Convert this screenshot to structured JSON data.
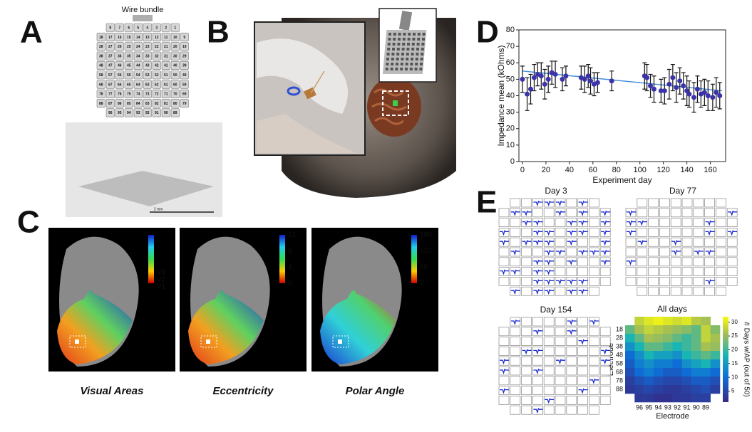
{
  "panel_labels": [
    "A",
    "B",
    "C",
    "D",
    "E"
  ],
  "array_map": {
    "title": "Wire bundle",
    "rows": [
      [
        8,
        7,
        6,
        5,
        4,
        3,
        2,
        1
      ],
      [
        18,
        17,
        16,
        15,
        14,
        13,
        12,
        11,
        10,
        9
      ],
      [
        28,
        27,
        26,
        25,
        24,
        23,
        22,
        21,
        20,
        19
      ],
      [
        38,
        37,
        36,
        35,
        34,
        33,
        32,
        31,
        30,
        29
      ],
      [
        48,
        47,
        46,
        45,
        44,
        43,
        42,
        41,
        40,
        39
      ],
      [
        58,
        57,
        56,
        55,
        54,
        53,
        52,
        51,
        50,
        49
      ],
      [
        68,
        67,
        66,
        65,
        64,
        63,
        62,
        61,
        60,
        59
      ],
      [
        78,
        77,
        76,
        75,
        74,
        73,
        72,
        71,
        70,
        69
      ],
      [
        88,
        87,
        86,
        85,
        84,
        83,
        82,
        81,
        80,
        79
      ],
      [
        96,
        95,
        94,
        93,
        92,
        91,
        90,
        89
      ]
    ]
  },
  "photo_scale": "2 mm",
  "brain_maps": [
    {
      "caption": "Visual Areas",
      "colorbar_labels": [
        "V3",
        "V2",
        "V1"
      ]
    },
    {
      "caption": "Eccentricity",
      "colorbar_ticks": [
        12,
        8,
        4,
        0
      ]
    },
    {
      "caption": "Polar Angle",
      "colorbar_ticks": [
        180,
        120,
        60,
        0
      ]
    }
  ],
  "waveform_panels": [
    {
      "title": "Day 3"
    },
    {
      "title": "Day 77"
    },
    {
      "title": "Day 154"
    }
  ],
  "chart_data": [
    {
      "type": "scatter",
      "xlabel": "Experiment day",
      "ylabel": "Impedance mean (kOhms)",
      "color": "#3b33a8",
      "error_color": "#111111",
      "x": [
        0,
        4,
        7,
        10,
        13,
        16,
        19,
        22,
        25,
        28,
        34,
        37,
        50,
        53,
        56,
        58,
        61,
        64,
        76,
        104,
        106,
        109,
        112,
        118,
        121,
        125,
        128,
        131,
        134,
        137,
        140,
        142,
        146,
        149,
        152,
        155,
        158,
        162,
        165,
        168
      ],
      "values": [
        50,
        41,
        44,
        51,
        53,
        52,
        47,
        50,
        54,
        53,
        50,
        52,
        51,
        50,
        52,
        49,
        47,
        48,
        49,
        52,
        51,
        46,
        44,
        43,
        43,
        47,
        51,
        45,
        49,
        46,
        43,
        41,
        39,
        44,
        41,
        42,
        40,
        39,
        42,
        40
      ],
      "errors": [
        8,
        10,
        9,
        8,
        7,
        8,
        9,
        8,
        7,
        8,
        7,
        6,
        7,
        8,
        7,
        8,
        7,
        6,
        6,
        8,
        8,
        7,
        8,
        7,
        8,
        9,
        8,
        9,
        8,
        8,
        9,
        8,
        9,
        8,
        8,
        8,
        9,
        8,
        9,
        8
      ],
      "trend_line": {
        "color": "#4a90d9",
        "x": [
          0,
          170
        ],
        "values": [
          55,
          43
        ]
      },
      "xlim": [
        -3,
        173
      ],
      "ylim": [
        0,
        80
      ],
      "xticks": [
        0,
        20,
        40,
        60,
        80,
        100,
        120,
        140,
        160
      ],
      "yticks": [
        0,
        10,
        20,
        30,
        40,
        50,
        60,
        70,
        80
      ]
    },
    {
      "type": "heatmap",
      "title": "All days",
      "xlabel": "Electrode",
      "ylabel": "Electrode",
      "colorbar_label": "# Days w/AP (out of 50)",
      "x_categories": [
        null,
        "96",
        "95",
        "94",
        "93",
        "92",
        "91",
        "90",
        "89",
        null
      ],
      "y_categories": [
        null,
        "18",
        "28",
        "38",
        "48",
        "58",
        "68",
        "78",
        "88",
        null
      ],
      "values": [
        [
          null,
          28,
          30,
          31,
          30,
          29,
          30,
          27,
          26,
          null
        ],
        [
          22,
          26,
          28,
          27,
          26,
          25,
          24,
          22,
          28,
          24
        ],
        [
          18,
          22,
          26,
          25,
          24,
          22,
          20,
          22,
          28,
          26
        ],
        [
          14,
          18,
          22,
          22,
          20,
          18,
          20,
          22,
          26,
          25
        ],
        [
          10,
          14,
          18,
          16,
          16,
          14,
          18,
          20,
          22,
          20
        ],
        [
          8,
          12,
          14,
          12,
          12,
          10,
          14,
          16,
          18,
          14
        ],
        [
          6,
          10,
          12,
          10,
          8,
          8,
          10,
          12,
          12,
          10
        ],
        [
          4,
          6,
          8,
          6,
          5,
          5,
          6,
          8,
          8,
          6
        ],
        [
          3,
          4,
          5,
          4,
          3,
          3,
          4,
          5,
          6,
          4
        ],
        [
          null,
          3,
          3,
          2,
          2,
          3,
          3,
          4,
          4,
          null
        ]
      ],
      "zlim": [
        1,
        32
      ],
      "zticks": [
        5,
        10,
        15,
        20,
        25,
        30
      ]
    }
  ]
}
